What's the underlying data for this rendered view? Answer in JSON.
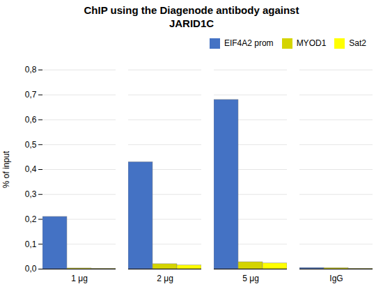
{
  "chart_data": {
    "type": "bar",
    "title": "ChIP using the Diagenode antibody against\nJARID1C",
    "ylabel": "% of input",
    "categories": [
      "1 μg",
      "2 μg",
      "5 μg",
      "IgG"
    ],
    "series": [
      {
        "name": "EIF4A2 prom",
        "color": "#4472C4",
        "values": [
          0.21,
          0.43,
          0.68,
          0.005
        ]
      },
      {
        "name": "MYOD1",
        "color": "#D4D400",
        "values": [
          0.003,
          0.02,
          0.028,
          0.004
        ]
      },
      {
        "name": "Sat2",
        "color": "#FFFF00",
        "values": [
          0.002,
          0.015,
          0.023,
          0.002
        ]
      }
    ],
    "ylim": [
      0,
      0.8
    ],
    "yticks": [
      {
        "value": 0.0,
        "label": "0,0"
      },
      {
        "value": 0.1,
        "label": "0,1"
      },
      {
        "value": 0.2,
        "label": "0,2"
      },
      {
        "value": 0.3,
        "label": "0,3"
      },
      {
        "value": 0.4,
        "label": "0,4"
      },
      {
        "value": 0.5,
        "label": "0,5"
      },
      {
        "value": 0.6,
        "label": "0,6"
      },
      {
        "value": 0.7,
        "label": "0,7"
      },
      {
        "value": 0.8,
        "label": "0,8"
      }
    ],
    "grid": true,
    "legend": "top-right"
  }
}
